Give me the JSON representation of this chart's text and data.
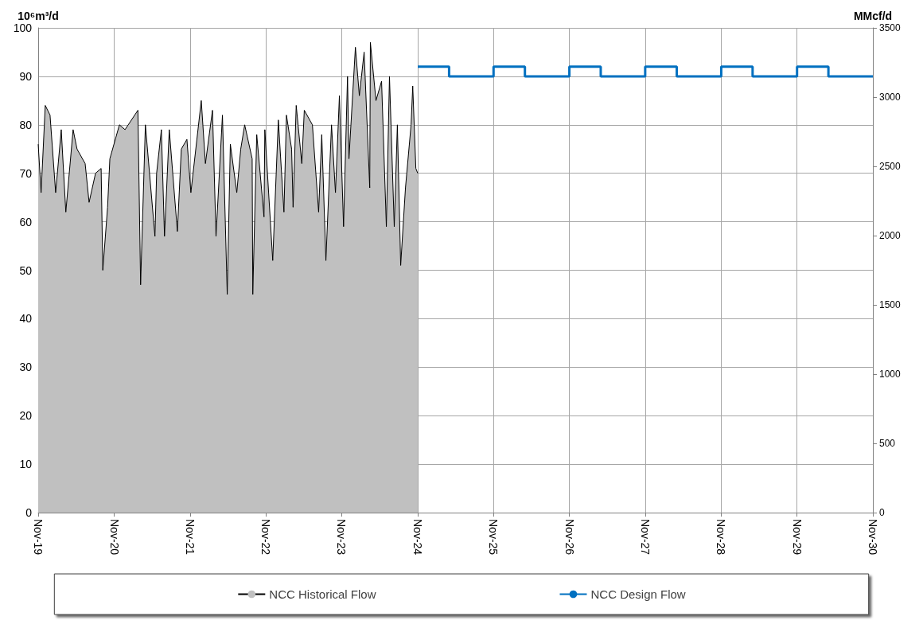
{
  "chart_data": {
    "type": "area",
    "ylabel": "10⁶m³/d",
    "y2label": "MMcf/d",
    "xlim": [
      "2019-11-01",
      "2030-11-01"
    ],
    "xticks": [
      {
        "value": "2019-11-01",
        "label": "Nov-19"
      },
      {
        "value": "2020-11-01",
        "label": "Nov-20"
      },
      {
        "value": "2021-11-01",
        "label": "Nov-21"
      },
      {
        "value": "2022-11-01",
        "label": "Nov-22"
      },
      {
        "value": "2023-11-01",
        "label": "Nov-23"
      },
      {
        "value": "2024-11-01",
        "label": "Nov-24"
      },
      {
        "value": "2025-11-01",
        "label": "Nov-25"
      },
      {
        "value": "2026-11-01",
        "label": "Nov-26"
      },
      {
        "value": "2027-11-01",
        "label": "Nov-27"
      },
      {
        "value": "2028-11-01",
        "label": "Nov-28"
      },
      {
        "value": "2029-11-01",
        "label": "Nov-29"
      },
      {
        "value": "2030-11-01",
        "label": "Nov-30"
      }
    ],
    "ylim": [
      0,
      100
    ],
    "yticks": [
      0,
      10,
      20,
      30,
      40,
      50,
      60,
      70,
      80,
      90,
      100
    ],
    "y2lim": [
      0,
      3500
    ],
    "y2ticks": [
      0,
      500,
      1000,
      1500,
      2000,
      2500,
      3000,
      3500
    ],
    "grid": true,
    "legend": "bottom",
    "series": [
      {
        "name": "NCC Historical Flow",
        "color": "#c0c0c0",
        "x": [
          "2019-11-01",
          "2019-11-15",
          "2019-12-05",
          "2019-12-28",
          "2020-01-24",
          "2020-02-20",
          "2020-03-13",
          "2020-04-17",
          "2020-05-06",
          "2020-06-14",
          "2020-07-03",
          "2020-08-03",
          "2020-08-30",
          "2020-09-07",
          "2020-09-30",
          "2020-10-11",
          "2020-11-26",
          "2020-12-23",
          "2021-02-23",
          "2021-03-08",
          "2021-03-31",
          "2021-05-16",
          "2021-05-24",
          "2021-06-16",
          "2021-07-01",
          "2021-07-24",
          "2021-09-01",
          "2021-09-20",
          "2021-10-17",
          "2021-11-05",
          "2021-12-25",
          "2022-01-14",
          "2022-02-17",
          "2022-03-06",
          "2022-04-06",
          "2022-04-29",
          "2022-05-14",
          "2022-06-14",
          "2022-07-03",
          "2022-07-22",
          "2022-08-27",
          "2022-08-30",
          "2022-09-18",
          "2022-10-23",
          "2022-10-27",
          "2022-12-04",
          "2022-12-31",
          "2023-01-27",
          "2023-02-08",
          "2023-03-05",
          "2023-03-12",
          "2023-03-27",
          "2023-04-23",
          "2023-05-05",
          "2023-06-13",
          "2023-07-13",
          "2023-07-28",
          "2023-08-17",
          "2023-09-13",
          "2023-10-02",
          "2023-10-21",
          "2023-11-10",
          "2023-11-29",
          "2023-12-06",
          "2024-01-06",
          "2024-01-25",
          "2024-02-17",
          "2024-03-15",
          "2024-03-18",
          "2024-04-14",
          "2024-05-11",
          "2024-06-03",
          "2024-06-18",
          "2024-07-11",
          "2024-07-26",
          "2024-08-11",
          "2024-09-03",
          "2024-09-30",
          "2024-10-08",
          "2024-10-23",
          "2024-11-01"
        ],
        "values": [
          76,
          66,
          84,
          82,
          66,
          79,
          62,
          79,
          75,
          72,
          64,
          70,
          71,
          50,
          63,
          73,
          80,
          79,
          83,
          47,
          80,
          57,
          70,
          79,
          57,
          79,
          58,
          75,
          77,
          66,
          85,
          72,
          83,
          57,
          82,
          45,
          76,
          66,
          75,
          80,
          73,
          45,
          78,
          61,
          79,
          52,
          81,
          62,
          82,
          75,
          63,
          84,
          72,
          83,
          80,
          62,
          78,
          52,
          80,
          66,
          86,
          59,
          90,
          73,
          96,
          86,
          95,
          67,
          97,
          85,
          89,
          59,
          90,
          59,
          80,
          51,
          67,
          80,
          88,
          71,
          70
        ]
      },
      {
        "name": "NCC Design Flow",
        "type": "step",
        "color": "#0070c0",
        "x": [
          "2024-11-01",
          "2025-04-01",
          "2025-11-01",
          "2026-04-01",
          "2026-11-01",
          "2027-04-01",
          "2027-11-01",
          "2028-04-01",
          "2028-11-01",
          "2029-04-01",
          "2029-11-01",
          "2030-04-01",
          "2030-11-01"
        ],
        "values": [
          92,
          90,
          92,
          90,
          92,
          90,
          92,
          90,
          92,
          90,
          92,
          90,
          90
        ]
      }
    ]
  }
}
